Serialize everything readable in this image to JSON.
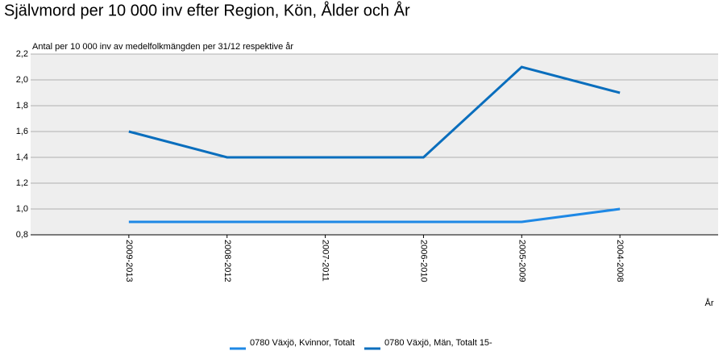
{
  "chart_data": {
    "type": "line",
    "title": "Självmord per 10 000 inv efter Region, Kön, Ålder och År",
    "subtitle": "Antal per 10 000 inv av medelfolkmängden per 31/12 respektive år",
    "x_label": "År",
    "categories": [
      "2009-2013",
      "2008-2012",
      "2007-2011",
      "2006-2010",
      "2005-2009",
      "2004-2008"
    ],
    "series": [
      {
        "name": "0780 Växjö, Kvinnor, Totalt",
        "color": "#1e88e5",
        "values": [
          0.9,
          0.9,
          0.9,
          0.9,
          0.9,
          1.0
        ]
      },
      {
        "name": "0780 Växjö, Män, Totalt 15-",
        "color": "#0a6ebd",
        "values": [
          1.6,
          1.4,
          1.4,
          1.4,
          2.1,
          1.9
        ]
      }
    ],
    "ylim": [
      0.8,
      2.2
    ],
    "yticks": [
      {
        "value": 0.8,
        "label": "0,8"
      },
      {
        "value": 1.0,
        "label": "1,0"
      },
      {
        "value": 1.2,
        "label": "1,2"
      },
      {
        "value": 1.4,
        "label": "1,4"
      },
      {
        "value": 1.6,
        "label": "1,6"
      },
      {
        "value": 1.8,
        "label": "1,8"
      },
      {
        "value": 2.0,
        "label": "2,0"
      },
      {
        "value": 2.2,
        "label": "2,2"
      }
    ],
    "grid": true
  }
}
